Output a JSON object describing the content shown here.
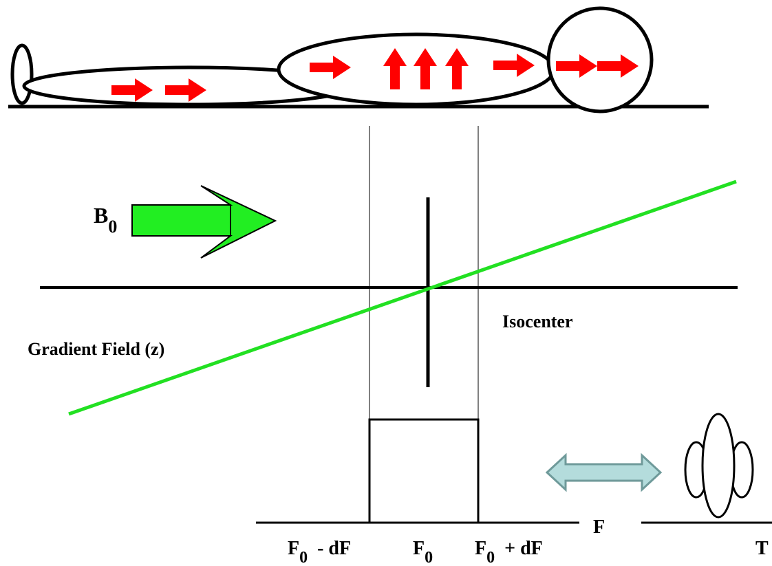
{
  "labels": {
    "b0_main": "B",
    "b0_sub": "0",
    "isocenter": "Isocenter",
    "gradient_field": "Gradient Field (z)",
    "f_axis": "F",
    "t_axis": "T",
    "f_minus_main": "F",
    "f_minus_sub": "0",
    "f_minus_suffix": "- dF",
    "f0_main": "F",
    "f0_sub": "0",
    "f_plus_main": "F",
    "f_plus_sub": "0",
    "f_plus_suffix": "+ dF"
  },
  "colors": {
    "spin_arrow": "#ff0000",
    "gradient_line": "#22e022",
    "b0_arrow": "#22ee22",
    "double_arrow_fill": "#b4dcdc",
    "double_arrow_stroke": "#6f9a9a",
    "ink": "#000000"
  },
  "icons": {
    "spin": "red-arrow-icon",
    "field": "green-arrow-icon",
    "transform": "double-headed-arrow-icon"
  }
}
